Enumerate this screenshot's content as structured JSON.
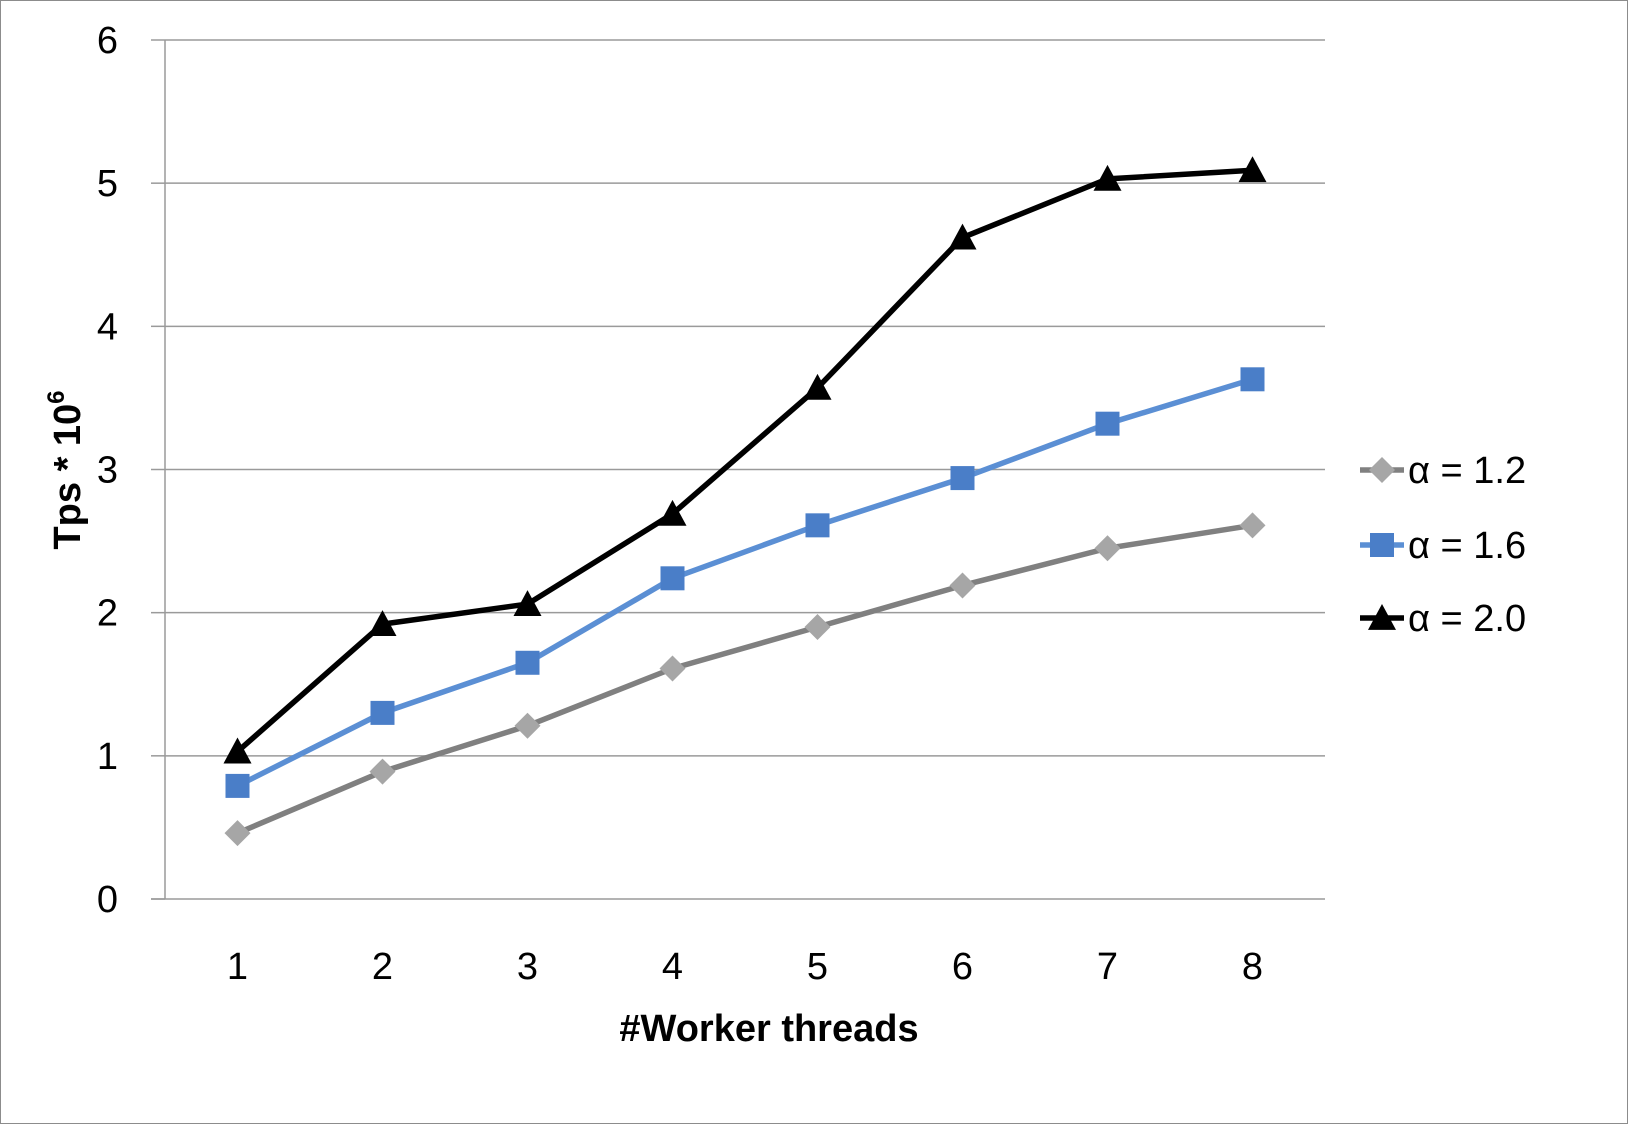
{
  "chart_data": {
    "type": "line",
    "title": "",
    "xlabel": "#Worker threads",
    "ylabel_base": "Tps * 10",
    "ylabel_exponent": "6",
    "categories": [
      "1",
      "2",
      "3",
      "4",
      "5",
      "6",
      "7",
      "8"
    ],
    "ylim": [
      0,
      6
    ],
    "yticks": [
      "0",
      "1",
      "2",
      "3",
      "4",
      "5",
      "6"
    ],
    "grid": true,
    "legend_position": "right",
    "series": [
      {
        "name": "α = 1.2",
        "marker": "diamond",
        "line_color": "#808080",
        "marker_color": "#a6a6a6",
        "values": [
          0.46,
          0.89,
          1.21,
          1.61,
          1.9,
          2.19,
          2.45,
          2.61
        ]
      },
      {
        "name": "α = 1.6",
        "marker": "square",
        "line_color": "#5b8fd4",
        "marker_color": "#4a7ec8",
        "values": [
          0.79,
          1.3,
          1.65,
          2.24,
          2.61,
          2.94,
          3.32,
          3.63
        ]
      },
      {
        "name": "α = 2.0",
        "marker": "triangle",
        "line_color": "#000000",
        "marker_color": "#000000",
        "values": [
          1.03,
          1.92,
          2.06,
          2.69,
          3.57,
          4.62,
          5.03,
          5.09
        ]
      }
    ]
  }
}
